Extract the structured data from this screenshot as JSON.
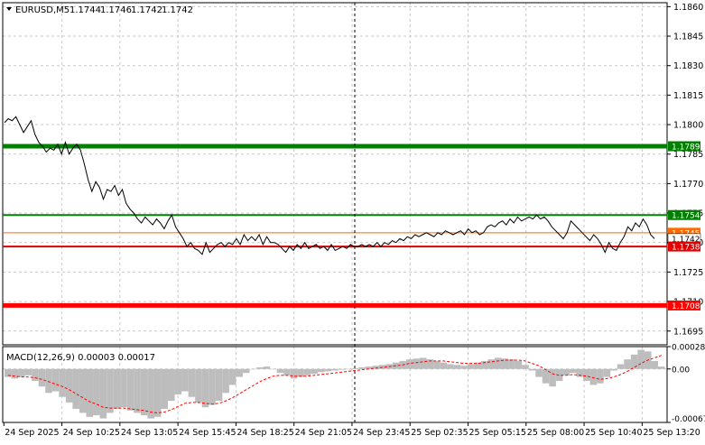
{
  "chart_data": [
    {
      "type": "line",
      "symbol": "EURUSD,M5",
      "ohlc": [
        "1.1744",
        "1.1746",
        "1.1742",
        "1.1742"
      ],
      "ylim": [
        1.1688,
        1.1862
      ],
      "yticks": [
        "1.1860",
        "1.1845",
        "1.1830",
        "1.1815",
        "1.1800",
        "1.1785",
        "1.1770",
        "1.1755",
        "1.1740",
        "1.1725",
        "1.1710",
        "1.1695"
      ],
      "grid": true,
      "levels": [
        {
          "value": 1.1789,
          "label": "1.1789",
          "color": "#008000",
          "style": "thick"
        },
        {
          "value": 1.1754,
          "label": "1.1754",
          "color": "#008000",
          "style": "normal"
        },
        {
          "value": 1.1745,
          "label": "1.1745",
          "color": "#ff6a00",
          "style": "thin"
        },
        {
          "value": 1.1742,
          "label": "1.1742",
          "color": "#000000",
          "style": "price"
        },
        {
          "value": 1.1738,
          "label": "1.1738",
          "color": "#e00000",
          "style": "normal"
        },
        {
          "value": 1.1708,
          "label": "1.1708",
          "color": "#ff0000",
          "style": "thick"
        }
      ],
      "series": [
        {
          "values": [
            1.1801,
            1.1803,
            1.1802,
            1.1804,
            1.18,
            1.1796,
            1.1799,
            1.1802,
            1.1795,
            1.1791,
            1.1789,
            1.1786,
            1.1788,
            1.1787,
            1.179,
            1.1785,
            1.1791,
            1.1785,
            1.1788,
            1.179,
            1.1787,
            1.178,
            1.1772,
            1.1766,
            1.1771,
            1.1768,
            1.1762,
            1.1767,
            1.1766,
            1.1769,
            1.1764,
            1.1767,
            1.176,
            1.1757,
            1.1755,
            1.1752,
            1.175,
            1.1753,
            1.1751,
            1.1749,
            1.1752,
            1.175,
            1.1747,
            1.1751,
            1.1754,
            1.1748,
            1.1745,
            1.1742,
            1.1738,
            1.174,
            1.1737,
            1.1736,
            1.1734,
            1.174,
            1.1735,
            1.1737,
            1.1739,
            1.174,
            1.1738,
            1.174,
            1.1739,
            1.1742,
            1.1739,
            1.1744,
            1.1741,
            1.1743,
            1.1741,
            1.1744,
            1.1739,
            1.1743,
            1.174,
            1.174,
            1.1739,
            1.1737,
            1.1735,
            1.1738,
            1.1736,
            1.1739,
            1.1737,
            1.174,
            1.1737,
            1.1738,
            1.1739,
            1.1737,
            1.1738,
            1.1736,
            1.1739,
            1.1736,
            1.1737,
            1.1738,
            1.1737,
            1.1739,
            1.1738,
            1.1738,
            1.1739,
            1.1738,
            1.1739,
            1.1738,
            1.174,
            1.1738,
            1.174,
            1.1739,
            1.1741,
            1.174,
            1.1742,
            1.1741,
            1.1743,
            1.1742,
            1.1744,
            1.1743,
            1.1744,
            1.1745,
            1.1744,
            1.1743,
            1.1745,
            1.1744,
            1.1746,
            1.1745,
            1.1744,
            1.1745,
            1.1746,
            1.1744,
            1.1747,
            1.1745,
            1.1746,
            1.1744,
            1.1745,
            1.1748,
            1.1749,
            1.1748,
            1.175,
            1.1751,
            1.1749,
            1.1752,
            1.175,
            1.1753,
            1.1751,
            1.1752,
            1.1753,
            1.1752,
            1.1754,
            1.1752,
            1.1753,
            1.1751,
            1.1748,
            1.1746,
            1.1744,
            1.1742,
            1.1745,
            1.1751,
            1.1749,
            1.1747,
            1.1745,
            1.1743,
            1.1741,
            1.1744,
            1.1742,
            1.1739,
            1.1735,
            1.174,
            1.1737,
            1.1736,
            1.174,
            1.1743,
            1.1748,
            1.1746,
            1.175,
            1.1748,
            1.1752,
            1.1749,
            1.1744,
            1.1742
          ]
        }
      ],
      "xticks": [
        "24 Sep 2025",
        "24 Sep 10:25",
        "24 Sep 13:05",
        "24 Sep 15:45",
        "24 Sep 18:25",
        "24 Sep 21:05",
        "24 Sep 23:45",
        "25 Sep 02:35",
        "25 Sep 05:15",
        "25 Sep 08:00",
        "25 Sep 10:40",
        "25 Sep 13:20"
      ]
    },
    {
      "type": "bar",
      "title": "MACD(12,26,9) 0.00003 0.00017",
      "ylim": [
        -0.00067,
        0.00028
      ],
      "yticks": [
        "0.00028",
        "0.00",
        "-0.00067"
      ],
      "series": [
        {
          "name": "MACD",
          "values": [
            -0.0001,
            -0.00012,
            -0.0001,
            -8e-05,
            -0.00015,
            -0.00022,
            -0.0003,
            -0.00028,
            -0.00035,
            -0.00042,
            -0.0005,
            -0.00055,
            -0.0006,
            -0.00058,
            -0.00062,
            -0.00055,
            -0.0005,
            -0.00048,
            -0.00052,
            -0.00055,
            -0.00058,
            -0.00062,
            -0.0006,
            -0.0005,
            -0.0004,
            -0.00032,
            -0.00028,
            -0.00035,
            -0.00042,
            -0.00048,
            -0.00045,
            -0.0004,
            -0.0003,
            -0.0002,
            -0.0001,
            -5e-05,
            0.0,
            2e-05,
            3e-05,
            0.0,
            -5e-05,
            -8e-05,
            -0.00012,
            -0.0001,
            -8e-05,
            -6e-05,
            -4e-05,
            -3e-05,
            -2e-05,
            -1e-05,
            0.0,
            1e-05,
            2e-05,
            3e-05,
            4e-05,
            5e-05,
            6e-05,
            8e-05,
            0.0001,
            0.00012,
            0.00013,
            0.00014,
            0.00012,
            0.0001,
            8e-05,
            6e-05,
            5e-05,
            4e-05,
            6e-05,
            8e-05,
            0.0001,
            0.00012,
            0.00014,
            0.00013,
            0.00012,
            0.0001,
            5e-05,
            -2e-05,
            -0.0001,
            -0.00018,
            -0.00022,
            -0.00015,
            -8e-05,
            -5e-05,
            -0.0001,
            -0.00015,
            -0.0002,
            -0.00018,
            -0.0001,
            -2e-05,
            6e-05,
            0.00012,
            0.00018,
            0.00024,
            0.00022,
            0.0001,
            3e-05
          ]
        },
        {
          "name": "Signal",
          "values": [
            -8e-05,
            -9e-05,
            -0.0001,
            -0.0001,
            -0.00011,
            -0.00013,
            -0.00016,
            -0.00019,
            -0.00022,
            -0.00026,
            -0.00031,
            -0.00036,
            -0.00041,
            -0.00044,
            -0.00048,
            -0.00049,
            -0.00049,
            -0.00049,
            -0.0005,
            -0.00051,
            -0.00052,
            -0.00054,
            -0.00055,
            -0.00054,
            -0.00051,
            -0.00047,
            -0.00043,
            -0.00042,
            -0.00042,
            -0.00043,
            -0.00044,
            -0.00043,
            -0.0004,
            -0.00036,
            -0.00031,
            -0.00026,
            -0.00021,
            -0.00016,
            -0.00012,
            -9e-05,
            -8e-05,
            -8e-05,
            -9e-05,
            -9e-05,
            -9e-05,
            -8e-05,
            -7e-05,
            -6e-05,
            -5e-05,
            -4e-05,
            -3e-05,
            -2e-05,
            -1e-05,
            0.0,
            1e-05,
            2e-05,
            3e-05,
            4e-05,
            5e-05,
            7e-05,
            8e-05,
            9e-05,
            0.0001,
            0.0001,
            0.0001,
            9e-05,
            8e-05,
            7e-05,
            7e-05,
            7e-05,
            8e-05,
            9e-05,
            0.0001,
            0.00011,
            0.00011,
            0.00011,
            0.0001,
            7e-05,
            4e-05,
            -1e-05,
            -6e-05,
            -8e-05,
            -8e-05,
            -7e-05,
            -8e-05,
            -9e-05,
            -0.00011,
            -0.00013,
            -0.00012,
            -0.0001,
            -7e-05,
            -3e-05,
            2e-05,
            7e-05,
            0.00011,
            0.00014,
            0.00017
          ]
        }
      ]
    }
  ]
}
